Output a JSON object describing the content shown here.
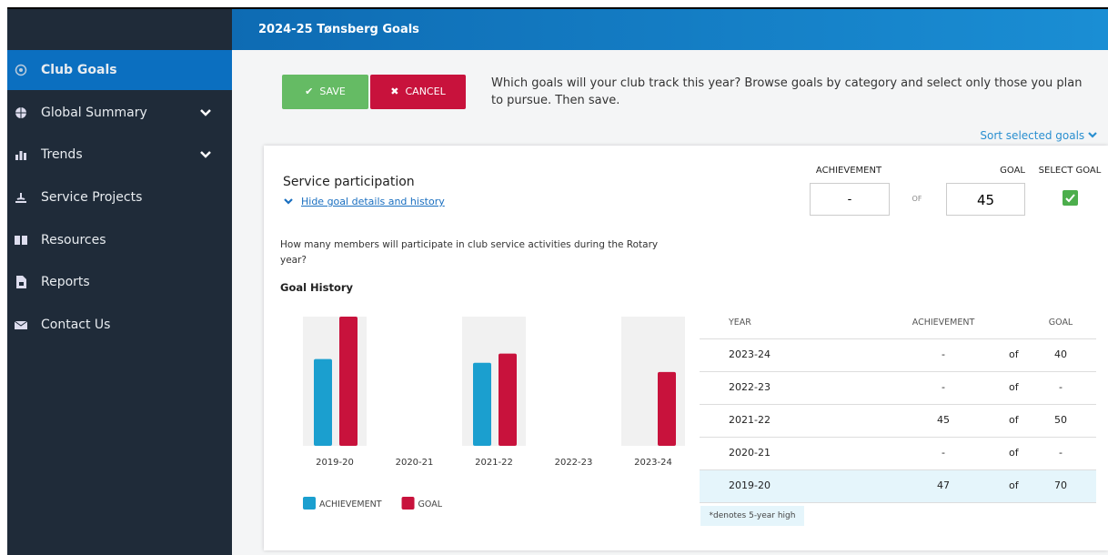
{
  "header": {
    "title": "2024-25 Tønsberg Goals"
  },
  "sidebar": {
    "items": [
      "Club Goals",
      "Global Summary",
      "Trends",
      "Service Projects",
      "Resources",
      "Reports",
      "Contact Us"
    ]
  },
  "toolbar": {
    "save": "SAVE",
    "cancel": "CANCEL",
    "instructions": "Which goals will your club track this year? Browse goals by category and select only those you plan to pursue. Then save."
  },
  "sort_link": "Sort selected goals",
  "goal": {
    "name": "Service participation",
    "toggle": "Hide goal details and history",
    "description": "How many members will participate in club service activities during the Rotary year?",
    "achievement_label": "ACHIEVEMENT",
    "achievement_value": "-",
    "of": "OF",
    "goal_label": "GOAL",
    "goal_value": 45,
    "select_label": "SELECT GOAL",
    "history_title": "Goal History"
  },
  "chart_data": {
    "type": "bar",
    "categories": [
      "2019-20",
      "2020-21",
      "2021-22",
      "2022-23",
      "2023-24"
    ],
    "series": [
      {
        "name": "ACHIEVEMENT",
        "color": "#1b9fcf",
        "values": [
          47,
          null,
          45,
          null,
          null
        ]
      },
      {
        "name": "GOAL",
        "color": "#c8123c",
        "values": [
          70,
          null,
          50,
          null,
          40
        ]
      }
    ]
  },
  "table": {
    "columns": [
      "YEAR",
      "ACHIEVEMENT",
      "GOAL"
    ],
    "rows": [
      [
        "2023-24",
        "-",
        "of",
        40
      ],
      [
        "2022-23",
        "-",
        "of",
        "-"
      ],
      [
        "2021-22",
        45,
        "of",
        50
      ],
      [
        "2020-21",
        "-",
        "of",
        "-"
      ],
      [
        "2019-20",
        47,
        "of",
        70
      ]
    ]
  },
  "footnote": "*denotes 5-year high"
}
